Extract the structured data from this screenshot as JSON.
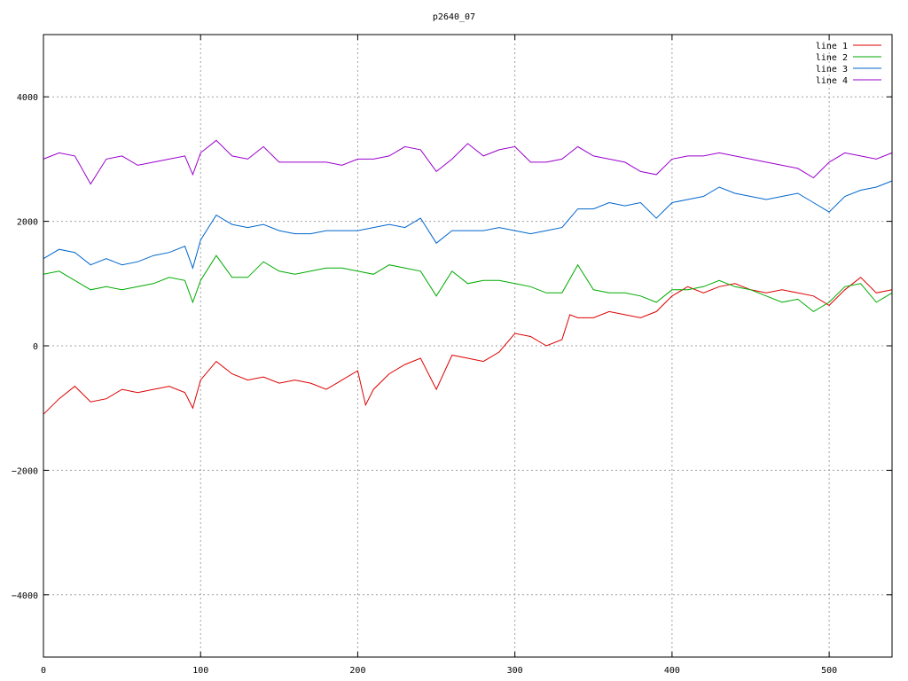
{
  "chart_data": {
    "type": "line",
    "title": "p2640_07",
    "xlim": [
      0,
      540
    ],
    "ylim": [
      -5000,
      5000
    ],
    "x_ticks": [
      0,
      100,
      200,
      300,
      400,
      500
    ],
    "y_ticks": [
      -4000,
      -2000,
      0,
      2000,
      4000
    ],
    "y_tick_labels": [
      "−4000",
      "−2000",
      "0",
      "2000",
      "4000"
    ],
    "grid": true,
    "legend_position": "top-right",
    "series": [
      {
        "name": "line 1",
        "color": "#dd0000",
        "x": [
          0,
          10,
          20,
          30,
          40,
          50,
          60,
          70,
          80,
          90,
          95,
          100,
          110,
          120,
          130,
          140,
          150,
          160,
          170,
          180,
          190,
          200,
          205,
          210,
          220,
          230,
          240,
          250,
          260,
          270,
          280,
          290,
          300,
          310,
          320,
          330,
          335,
          340,
          350,
          360,
          370,
          380,
          390,
          400,
          410,
          420,
          430,
          440,
          450,
          460,
          470,
          480,
          490,
          500,
          510,
          520,
          530,
          540
        ],
        "y": [
          -1100,
          -850,
          -650,
          -900,
          -850,
          -700,
          -750,
          -700,
          -650,
          -750,
          -1000,
          -550,
          -250,
          -450,
          -550,
          -500,
          -600,
          -550,
          -600,
          -700,
          -550,
          -400,
          -950,
          -700,
          -450,
          -300,
          -200,
          -700,
          -150,
          -200,
          -250,
          -100,
          200,
          150,
          0,
          100,
          500,
          450,
          450,
          550,
          500,
          450,
          550,
          800,
          950,
          850,
          950,
          1000,
          900,
          850,
          900,
          850,
          800,
          650,
          900,
          1100,
          850,
          900
        ]
      },
      {
        "name": "line 2",
        "color": "#00aa00",
        "x": [
          0,
          10,
          20,
          30,
          40,
          50,
          60,
          70,
          80,
          90,
          95,
          100,
          110,
          120,
          130,
          140,
          150,
          160,
          170,
          180,
          190,
          200,
          210,
          220,
          230,
          240,
          250,
          260,
          270,
          280,
          290,
          300,
          310,
          320,
          330,
          340,
          350,
          360,
          370,
          380,
          390,
          400,
          410,
          420,
          430,
          440,
          450,
          460,
          470,
          480,
          490,
          500,
          510,
          520,
          530,
          540
        ],
        "y": [
          1150,
          1200,
          1050,
          900,
          950,
          900,
          950,
          1000,
          1100,
          1050,
          700,
          1050,
          1450,
          1100,
          1100,
          1350,
          1200,
          1150,
          1200,
          1250,
          1250,
          1200,
          1150,
          1300,
          1250,
          1200,
          800,
          1200,
          1000,
          1050,
          1050,
          1000,
          950,
          850,
          850,
          1300,
          900,
          850,
          850,
          800,
          700,
          900,
          900,
          950,
          1050,
          950,
          900,
          800,
          700,
          750,
          550,
          700,
          950,
          1000,
          700,
          850
        ]
      },
      {
        "name": "line 3",
        "color": "#0066cc",
        "x": [
          0,
          10,
          20,
          30,
          40,
          50,
          60,
          70,
          80,
          90,
          95,
          100,
          110,
          120,
          130,
          140,
          150,
          160,
          170,
          180,
          190,
          200,
          210,
          220,
          230,
          240,
          250,
          260,
          270,
          280,
          290,
          300,
          310,
          320,
          330,
          340,
          350,
          360,
          370,
          380,
          390,
          400,
          410,
          420,
          430,
          440,
          450,
          460,
          470,
          480,
          490,
          500,
          510,
          520,
          530,
          540
        ],
        "y": [
          1400,
          1550,
          1500,
          1300,
          1400,
          1300,
          1350,
          1450,
          1500,
          1600,
          1250,
          1700,
          2100,
          1950,
          1900,
          1950,
          1850,
          1800,
          1800,
          1850,
          1850,
          1850,
          1900,
          1950,
          1900,
          2050,
          1650,
          1850,
          1850,
          1850,
          1900,
          1850,
          1800,
          1850,
          1900,
          2200,
          2200,
          2300,
          2250,
          2300,
          2050,
          2300,
          2350,
          2400,
          2550,
          2450,
          2400,
          2350,
          2400,
          2450,
          2300,
          2150,
          2400,
          2500,
          2550,
          2650
        ]
      },
      {
        "name": "line 4",
        "color": "#9900cc",
        "x": [
          0,
          10,
          20,
          30,
          40,
          50,
          60,
          70,
          80,
          90,
          95,
          100,
          110,
          120,
          130,
          140,
          150,
          160,
          170,
          180,
          190,
          200,
          210,
          220,
          230,
          240,
          250,
          260,
          270,
          280,
          290,
          300,
          310,
          320,
          330,
          340,
          350,
          360,
          370,
          380,
          390,
          400,
          410,
          420,
          430,
          440,
          450,
          460,
          470,
          480,
          490,
          500,
          510,
          520,
          530,
          540
        ],
        "y": [
          3000,
          3100,
          3050,
          2600,
          3000,
          3050,
          2900,
          2950,
          3000,
          3050,
          2750,
          3100,
          3300,
          3050,
          3000,
          3200,
          2950,
          2950,
          2950,
          2950,
          2900,
          3000,
          3000,
          3050,
          3200,
          3150,
          2800,
          3000,
          3250,
          3050,
          3150,
          3200,
          2950,
          2950,
          3000,
          3200,
          3050,
          3000,
          2950,
          2800,
          2750,
          3000,
          3050,
          3050,
          3100,
          3050,
          3000,
          2950,
          2900,
          2850,
          2700,
          2950,
          3100,
          3050,
          3000,
          3100
        ]
      }
    ]
  }
}
